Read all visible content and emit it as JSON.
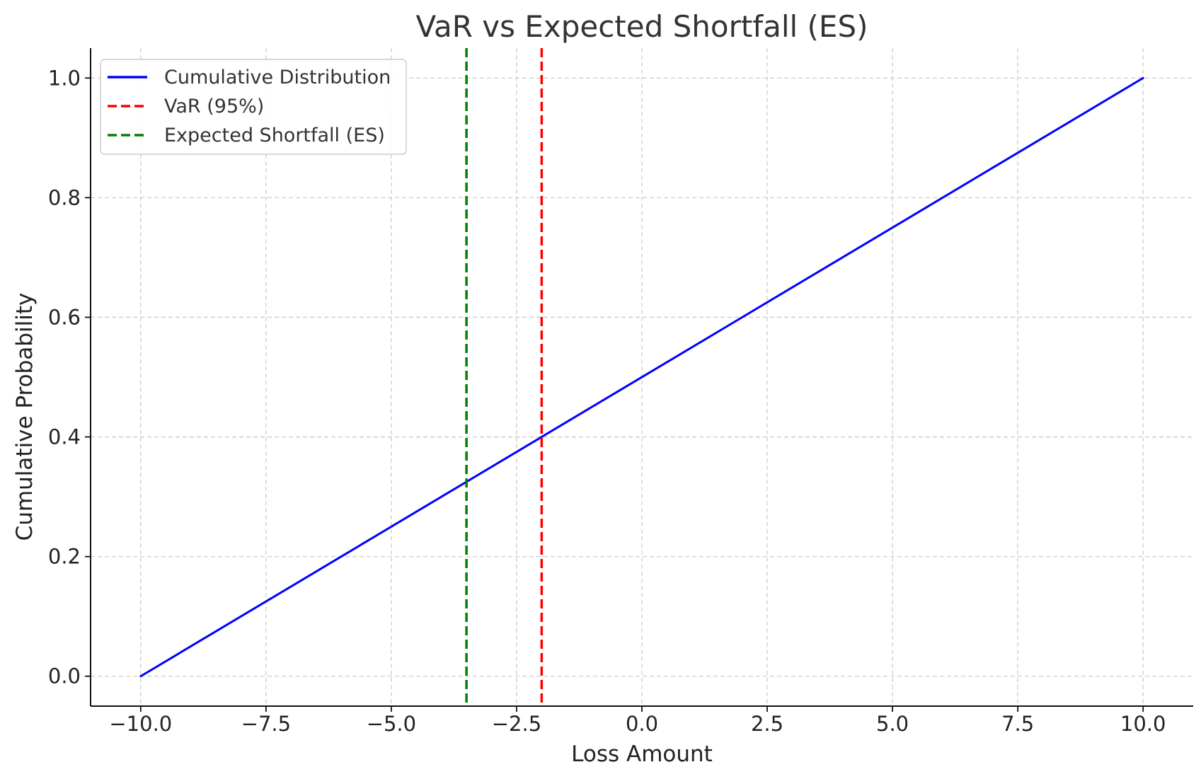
{
  "chart_data": {
    "type": "line",
    "title": "VaR vs Expected Shortfall (ES)",
    "xlabel": "Loss Amount",
    "ylabel": "Cumulative Probability",
    "xlim": [
      -11.0,
      11.0
    ],
    "ylim": [
      -0.05,
      1.05
    ],
    "xticks": [
      -10.0,
      -7.5,
      -5.0,
      -2.5,
      0.0,
      2.5,
      5.0,
      7.5,
      10.0
    ],
    "xtick_labels": [
      "−10.0",
      "−7.5",
      "−5.0",
      "−2.5",
      "0.0",
      "2.5",
      "5.0",
      "7.5",
      "10.0"
    ],
    "yticks": [
      0.0,
      0.2,
      0.4,
      0.6,
      0.8,
      1.0
    ],
    "ytick_labels": [
      "0.0",
      "0.2",
      "0.4",
      "0.6",
      "0.8",
      "1.0"
    ],
    "grid": true,
    "legend_position": "top-left",
    "series": [
      {
        "name": "Cumulative Distribution",
        "kind": "line",
        "style": "solid",
        "color": "#0000ff",
        "x": [
          -10.0,
          10.0
        ],
        "y": [
          0.0,
          1.0
        ]
      }
    ],
    "vlines": [
      {
        "name": "VaR (95%)",
        "x": -2.0,
        "color": "#ff0000",
        "style": "dashed"
      },
      {
        "name": "Expected Shortfall (ES)",
        "x": -3.5,
        "color": "#008000",
        "style": "dashed"
      }
    ]
  }
}
